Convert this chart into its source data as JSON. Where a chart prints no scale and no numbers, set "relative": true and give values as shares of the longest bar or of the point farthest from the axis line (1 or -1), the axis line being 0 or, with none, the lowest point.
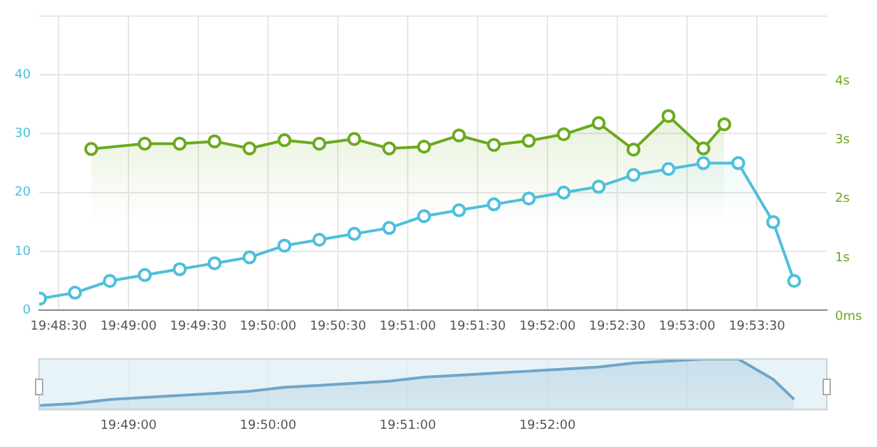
{
  "chart_data": [
    {
      "type": "area",
      "marker": "circle",
      "grid": true,
      "xlim": [
        19.806,
        19.9
      ],
      "xticks": [
        {
          "value": 19.80833,
          "label": "19:48:30"
        },
        {
          "value": 19.81667,
          "label": "19:49:00"
        },
        {
          "value": 19.825,
          "label": "19:49:30"
        },
        {
          "value": 19.83333,
          "label": "19:50:00"
        },
        {
          "value": 19.84167,
          "label": "19:50:30"
        },
        {
          "value": 19.85,
          "label": "19:51:00"
        },
        {
          "value": 19.85833,
          "label": "19:51:30"
        },
        {
          "value": 19.86667,
          "label": "19:52:00"
        },
        {
          "value": 19.875,
          "label": "19:52:30"
        },
        {
          "value": 19.88333,
          "label": "19:53:00"
        },
        {
          "value": 19.89167,
          "label": "19:53:30"
        }
      ],
      "ylim": [
        0,
        50
      ],
      "yticks": [
        0,
        10,
        20,
        30,
        40,
        {
          "value": 50,
          "label": null
        }
      ],
      "y2lim": [
        0,
        5
      ],
      "y2ticks": [
        {
          "value": 0,
          "label": "0ms"
        },
        {
          "value": 1,
          "label": "1s"
        },
        {
          "value": 2,
          "label": "2s"
        },
        {
          "value": 3,
          "label": "3s"
        },
        {
          "value": 4,
          "label": "4s"
        },
        {
          "value": 5,
          "label": null
        }
      ],
      "series": [
        {
          "color": "#4dbfdb",
          "x": [
            19.80611,
            19.81028,
            19.81444,
            19.81861,
            19.82278,
            19.82694,
            19.83111,
            19.83528,
            19.83944,
            19.84361,
            19.84778,
            19.85194,
            19.85611,
            19.86028,
            19.86444,
            19.86861,
            19.87278,
            19.87694,
            19.88111,
            19.88528,
            19.88944,
            19.89361,
            19.89611
          ],
          "values": [
            2,
            3,
            5,
            6,
            7,
            8,
            9,
            11,
            12,
            13,
            14,
            16,
            17,
            18,
            19,
            20,
            21,
            23,
            24,
            25,
            25,
            15,
            5
          ]
        },
        {
          "color": "#6aaa1e",
          "axis": "y2",
          "x": [
            19.81222,
            19.81861,
            19.82278,
            19.82694,
            19.83111,
            19.83528,
            19.83944,
            19.84361,
            19.84778,
            19.85194,
            19.85611,
            19.86028,
            19.86444,
            19.86861,
            19.87278,
            19.87694,
            19.88111,
            19.88528,
            19.88778
          ],
          "values": [
            2.74,
            2.83,
            2.83,
            2.87,
            2.75,
            2.89,
            2.83,
            2.91,
            2.75,
            2.78,
            2.97,
            2.81,
            2.88,
            2.99,
            3.18,
            2.73,
            3.3,
            2.75,
            3.16
          ]
        }
      ]
    },
    {
      "type": "area",
      "relative": true,
      "tick_labels": "x",
      "grid": "x",
      "xlim": [
        19.806,
        19.9
      ],
      "xticks": [
        {
          "value": 19.81667,
          "label": "19:49:00"
        },
        {
          "value": 19.83333,
          "label": "19:50:00"
        },
        {
          "value": 19.85,
          "label": "19:51:00"
        },
        {
          "value": 19.86667,
          "label": "19:52:00"
        },
        {
          "value": 19.88333,
          "label": null
        }
      ],
      "series": [
        {
          "color": "#6fa6c8",
          "x": [
            19.80611,
            19.81028,
            19.81444,
            19.81861,
            19.82278,
            19.82694,
            19.83111,
            19.83528,
            19.83944,
            19.84361,
            19.84778,
            19.85194,
            19.85611,
            19.86028,
            19.86444,
            19.86861,
            19.87278,
            19.87694,
            19.88111,
            19.88528,
            19.88944,
            19.89361,
            19.89611
          ],
          "values": [
            0.08,
            0.12,
            0.2,
            0.24,
            0.28,
            0.32,
            0.36,
            0.44,
            0.48,
            0.52,
            0.56,
            0.64,
            0.68,
            0.72,
            0.76,
            0.8,
            0.84,
            0.92,
            0.96,
            1,
            1,
            0.6,
            0.2
          ]
        }
      ]
    }
  ]
}
